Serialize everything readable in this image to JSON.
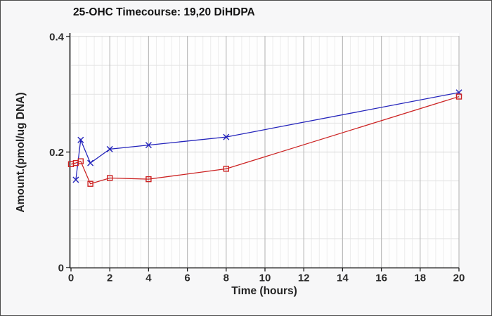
{
  "window": {
    "background_color": "#f7f7f8",
    "plot_background_color": "#fefefe",
    "border_color": "#4a4a4a"
  },
  "chart_data": {
    "type": "line",
    "title": "25-OHC Timecourse: 19,20 DiHDPA",
    "xlabel": "Time (hours)",
    "ylabel": "Amount.(pmol/ug DNA)",
    "xlim": [
      0,
      20
    ],
    "ylim": [
      0,
      0.4
    ],
    "x_major_ticks": [
      0,
      2,
      4,
      6,
      8,
      10,
      12,
      14,
      16,
      18,
      20
    ],
    "y_major_ticks": [
      0,
      0.2,
      0.4
    ],
    "y_tick_labels": [
      "0",
      "0.2",
      "0.4"
    ],
    "x_minor_step": 0.4,
    "y_minor_step": 0.05,
    "grid": "on",
    "legend_position": "none",
    "axis_color": "#1a1a1a",
    "major_grid_color": "#bdbdbd",
    "minor_grid_color": "#ececec",
    "h_grid_color": "#e3e3e3",
    "h_grid_emphasis_color": "#d4d4d4",
    "series": [
      {
        "name": "blue-x-series",
        "marker": "x",
        "color": "#2323bb",
        "x": [
          0.25,
          0.5,
          1,
          2,
          4,
          8,
          20
        ],
        "y": [
          0.152,
          0.221,
          0.181,
          0.205,
          0.212,
          0.226,
          0.303
        ]
      },
      {
        "name": "red-square-series",
        "marker": "square",
        "color": "#cc2222",
        "x": [
          0,
          0.25,
          0.5,
          1,
          2,
          4,
          8,
          20
        ],
        "y": [
          0.179,
          0.181,
          0.184,
          0.145,
          0.155,
          0.153,
          0.171,
          0.296
        ]
      }
    ]
  }
}
